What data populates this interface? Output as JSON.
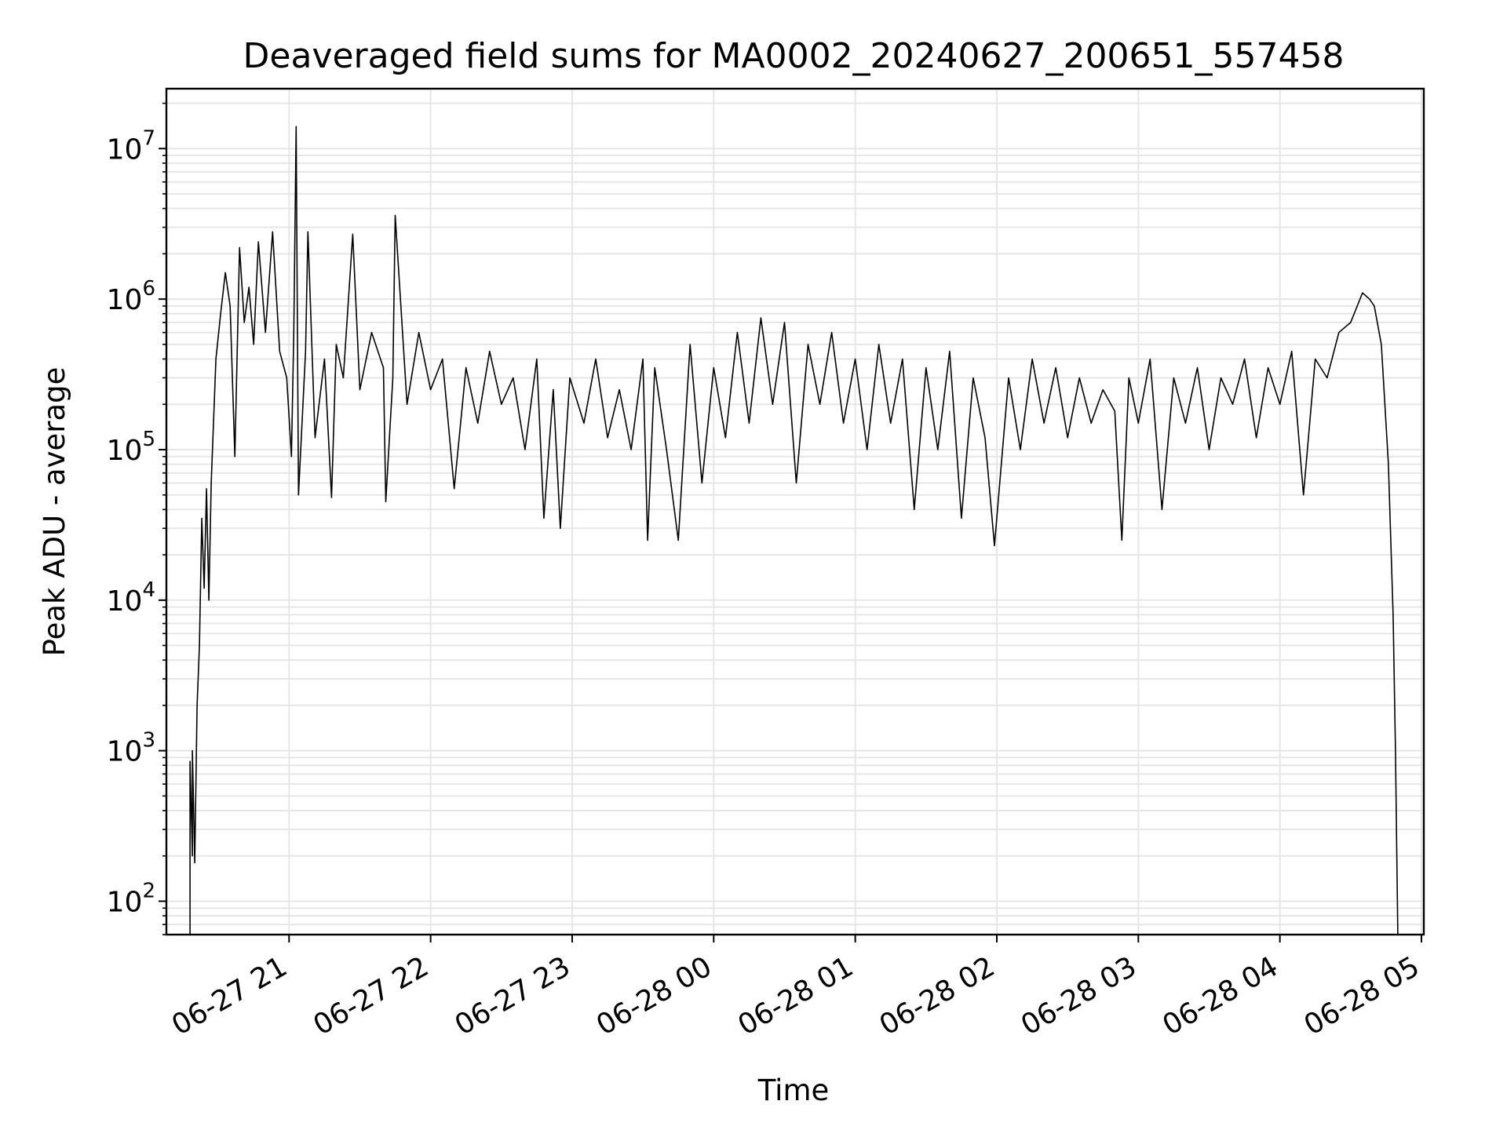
{
  "chart_data": {
    "type": "line",
    "title": "Deaveraged field sums for MA0002_20240627_200651_557458",
    "xlabel": "Time",
    "ylabel": "Peak ADU - average",
    "yscale": "log",
    "grid": true,
    "x_tick_labels": [
      "06-27 21",
      "06-27 22",
      "06-27 23",
      "06-28 00",
      "06-28 01",
      "06-28 02",
      "06-28 03",
      "06-28 04",
      "06-28 05"
    ],
    "y_tick_labels": [
      {
        "value": 100,
        "base": "10",
        "exp": "2"
      },
      {
        "value": 1000,
        "base": "10",
        "exp": "3"
      },
      {
        "value": 10000,
        "base": "10",
        "exp": "4"
      },
      {
        "value": 100000,
        "base": "10",
        "exp": "5"
      },
      {
        "value": 1000000,
        "base": "10",
        "exp": "6"
      },
      {
        "value": 10000000,
        "base": "10",
        "exp": "7"
      }
    ],
    "xlim": [
      "2024-06-27 20:08",
      "2024-06-28 05:01"
    ],
    "ylim": [
      60,
      25000000
    ],
    "series": [
      {
        "color": "#000000",
        "points": [
          [
            "2024-06-27 20:18",
            60
          ],
          [
            "2024-06-27 20:18",
            850
          ],
          [
            "2024-06-27 20:19",
            200
          ],
          [
            "2024-06-27 20:19",
            1000
          ],
          [
            "2024-06-27 20:20",
            180
          ],
          [
            "2024-06-27 20:21",
            2000
          ],
          [
            "2024-06-27 20:22",
            5000
          ],
          [
            "2024-06-27 20:23",
            35000
          ],
          [
            "2024-06-27 20:24",
            12000
          ],
          [
            "2024-06-27 20:25",
            55000
          ],
          [
            "2024-06-27 20:26",
            10000
          ],
          [
            "2024-06-27 20:27",
            60000
          ],
          [
            "2024-06-27 20:29",
            400000
          ],
          [
            "2024-06-27 20:31",
            800000
          ],
          [
            "2024-06-27 20:33",
            1500000
          ],
          [
            "2024-06-27 20:35",
            900000
          ],
          [
            "2024-06-27 20:37",
            90000
          ],
          [
            "2024-06-27 20:39",
            2200000
          ],
          [
            "2024-06-27 20:41",
            700000
          ],
          [
            "2024-06-27 20:43",
            1200000
          ],
          [
            "2024-06-27 20:45",
            500000
          ],
          [
            "2024-06-27 20:47",
            2400000
          ],
          [
            "2024-06-27 20:50",
            600000
          ],
          [
            "2024-06-27 20:53",
            2800000
          ],
          [
            "2024-06-27 20:56",
            450000
          ],
          [
            "2024-06-27 20:59",
            300000
          ],
          [
            "2024-06-27 21:01",
            90000
          ],
          [
            "2024-06-27 21:02",
            600000
          ],
          [
            "2024-06-27 21:03",
            14000000
          ],
          [
            "2024-06-27 21:04",
            50000
          ],
          [
            "2024-06-27 21:07",
            450000
          ],
          [
            "2024-06-27 21:08",
            2800000
          ],
          [
            "2024-06-27 21:11",
            120000
          ],
          [
            "2024-06-27 21:15",
            400000
          ],
          [
            "2024-06-27 21:18",
            48000
          ],
          [
            "2024-06-27 21:20",
            500000
          ],
          [
            "2024-06-27 21:23",
            300000
          ],
          [
            "2024-06-27 21:27",
            2700000
          ],
          [
            "2024-06-27 21:30",
            250000
          ],
          [
            "2024-06-27 21:35",
            600000
          ],
          [
            "2024-06-27 21:40",
            350000
          ],
          [
            "2024-06-27 21:41",
            45000
          ],
          [
            "2024-06-27 21:44",
            300000
          ],
          [
            "2024-06-27 21:45",
            3600000
          ],
          [
            "2024-06-27 21:50",
            200000
          ],
          [
            "2024-06-27 21:55",
            600000
          ],
          [
            "2024-06-27 22:00",
            250000
          ],
          [
            "2024-06-27 22:05",
            400000
          ],
          [
            "2024-06-27 22:10",
            55000
          ],
          [
            "2024-06-27 22:15",
            350000
          ],
          [
            "2024-06-27 22:20",
            150000
          ],
          [
            "2024-06-27 22:25",
            450000
          ],
          [
            "2024-06-27 22:30",
            200000
          ],
          [
            "2024-06-27 22:35",
            300000
          ],
          [
            "2024-06-27 22:40",
            100000
          ],
          [
            "2024-06-27 22:45",
            400000
          ],
          [
            "2024-06-27 22:48",
            35000
          ],
          [
            "2024-06-27 22:52",
            250000
          ],
          [
            "2024-06-27 22:55",
            30000
          ],
          [
            "2024-06-27 22:59",
            300000
          ],
          [
            "2024-06-27 23:05",
            150000
          ],
          [
            "2024-06-27 23:10",
            400000
          ],
          [
            "2024-06-27 23:15",
            120000
          ],
          [
            "2024-06-27 23:20",
            250000
          ],
          [
            "2024-06-27 23:25",
            100000
          ],
          [
            "2024-06-27 23:30",
            400000
          ],
          [
            "2024-06-27 23:32",
            25000
          ],
          [
            "2024-06-27 23:35",
            350000
          ],
          [
            "2024-06-27 23:40",
            100000
          ],
          [
            "2024-06-27 23:45",
            25000
          ],
          [
            "2024-06-27 23:50",
            500000
          ],
          [
            "2024-06-27 23:55",
            60000
          ],
          [
            "2024-06-28 00:00",
            350000
          ],
          [
            "2024-06-28 00:05",
            120000
          ],
          [
            "2024-06-28 00:10",
            600000
          ],
          [
            "2024-06-28 00:15",
            150000
          ],
          [
            "2024-06-28 00:20",
            750000
          ],
          [
            "2024-06-28 00:25",
            200000
          ],
          [
            "2024-06-28 00:30",
            700000
          ],
          [
            "2024-06-28 00:35",
            60000
          ],
          [
            "2024-06-28 00:40",
            500000
          ],
          [
            "2024-06-28 00:45",
            200000
          ],
          [
            "2024-06-28 00:50",
            600000
          ],
          [
            "2024-06-28 00:55",
            150000
          ],
          [
            "2024-06-28 01:00",
            400000
          ],
          [
            "2024-06-28 01:05",
            100000
          ],
          [
            "2024-06-28 01:10",
            500000
          ],
          [
            "2024-06-28 01:15",
            150000
          ],
          [
            "2024-06-28 01:20",
            400000
          ],
          [
            "2024-06-28 01:25",
            40000
          ],
          [
            "2024-06-28 01:30",
            350000
          ],
          [
            "2024-06-28 01:35",
            100000
          ],
          [
            "2024-06-28 01:40",
            450000
          ],
          [
            "2024-06-28 01:45",
            35000
          ],
          [
            "2024-06-28 01:50",
            300000
          ],
          [
            "2024-06-28 01:55",
            120000
          ],
          [
            "2024-06-28 01:59",
            23000
          ],
          [
            "2024-06-28 02:05",
            300000
          ],
          [
            "2024-06-28 02:10",
            100000
          ],
          [
            "2024-06-28 02:15",
            400000
          ],
          [
            "2024-06-28 02:20",
            150000
          ],
          [
            "2024-06-28 02:25",
            350000
          ],
          [
            "2024-06-28 02:30",
            120000
          ],
          [
            "2024-06-28 02:35",
            300000
          ],
          [
            "2024-06-28 02:40",
            150000
          ],
          [
            "2024-06-28 02:45",
            250000
          ],
          [
            "2024-06-28 02:50",
            180000
          ],
          [
            "2024-06-28 02:53",
            25000
          ],
          [
            "2024-06-28 02:56",
            300000
          ],
          [
            "2024-06-28 03:00",
            150000
          ],
          [
            "2024-06-28 03:05",
            400000
          ],
          [
            "2024-06-28 03:10",
            40000
          ],
          [
            "2024-06-28 03:15",
            300000
          ],
          [
            "2024-06-28 03:20",
            150000
          ],
          [
            "2024-06-28 03:25",
            350000
          ],
          [
            "2024-06-28 03:30",
            100000
          ],
          [
            "2024-06-28 03:35",
            300000
          ],
          [
            "2024-06-28 03:40",
            200000
          ],
          [
            "2024-06-28 03:45",
            400000
          ],
          [
            "2024-06-28 03:50",
            120000
          ],
          [
            "2024-06-28 03:55",
            350000
          ],
          [
            "2024-06-28 04:00",
            200000
          ],
          [
            "2024-06-28 04:05",
            450000
          ],
          [
            "2024-06-28 04:10",
            50000
          ],
          [
            "2024-06-28 04:15",
            400000
          ],
          [
            "2024-06-28 04:20",
            300000
          ],
          [
            "2024-06-28 04:25",
            600000
          ],
          [
            "2024-06-28 04:30",
            700000
          ],
          [
            "2024-06-28 04:35",
            1100000
          ],
          [
            "2024-06-28 04:38",
            1000000
          ],
          [
            "2024-06-28 04:40",
            900000
          ],
          [
            "2024-06-28 04:43",
            500000
          ],
          [
            "2024-06-28 04:46",
            80000
          ],
          [
            "2024-06-28 04:48",
            8000
          ],
          [
            "2024-06-28 04:49",
            1000
          ],
          [
            "2024-06-28 04:50",
            60
          ]
        ]
      }
    ]
  }
}
